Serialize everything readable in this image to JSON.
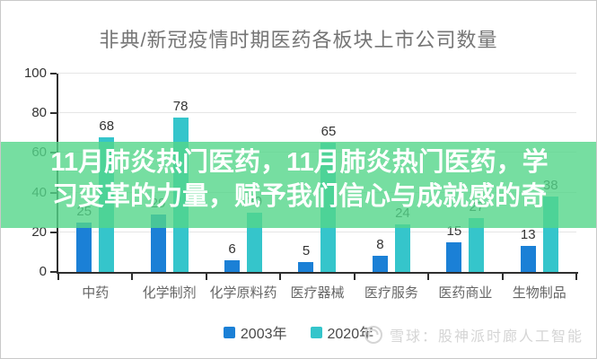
{
  "title": "非典/新冠疫情时期医药各板块上市公司数量",
  "overlay": {
    "line1": "11月肺炎热门医药，11月肺炎热门医药，学",
    "line2": "习变革的力量，赋予我们信心与成就感的奇",
    "background_rgba": "rgba(84,214,138,0.8)"
  },
  "watermark": {
    "logo": "snowball-logo",
    "text": "雪球：股神派时廊人工智能"
  },
  "colors": {
    "series_2003": "#1b80d6",
    "series_2020": "#35c5cb",
    "axis": "#2f2f2f",
    "gridline": "#e6e6e6",
    "title_text": "#757575",
    "label_text": "#333333",
    "xlabel_text": "#666666",
    "watermark_text": "#d5d5d5"
  },
  "chart_data": {
    "type": "bar",
    "title": "非典/新冠疫情时期医药各板块上市公司数量",
    "categories": [
      "中药",
      "化学制剂",
      "化学原料药",
      "医疗器械",
      "医疗服务",
      "医药商业",
      "生物制品"
    ],
    "series": [
      {
        "name": "2003年",
        "color": "#1b80d6",
        "values": [
          25,
          29,
          6,
          5,
          8,
          15,
          13
        ]
      },
      {
        "name": "2020年",
        "color": "#35c5cb",
        "values": [
          68,
          78,
          30,
          65,
          24,
          27,
          38
        ]
      }
    ],
    "xlabel": "",
    "ylabel": "",
    "ylim": [
      0,
      100
    ],
    "yticks": [
      0,
      20,
      40,
      60,
      80,
      100
    ],
    "grid": true,
    "legend_position": "bottom",
    "value_labels": true
  }
}
